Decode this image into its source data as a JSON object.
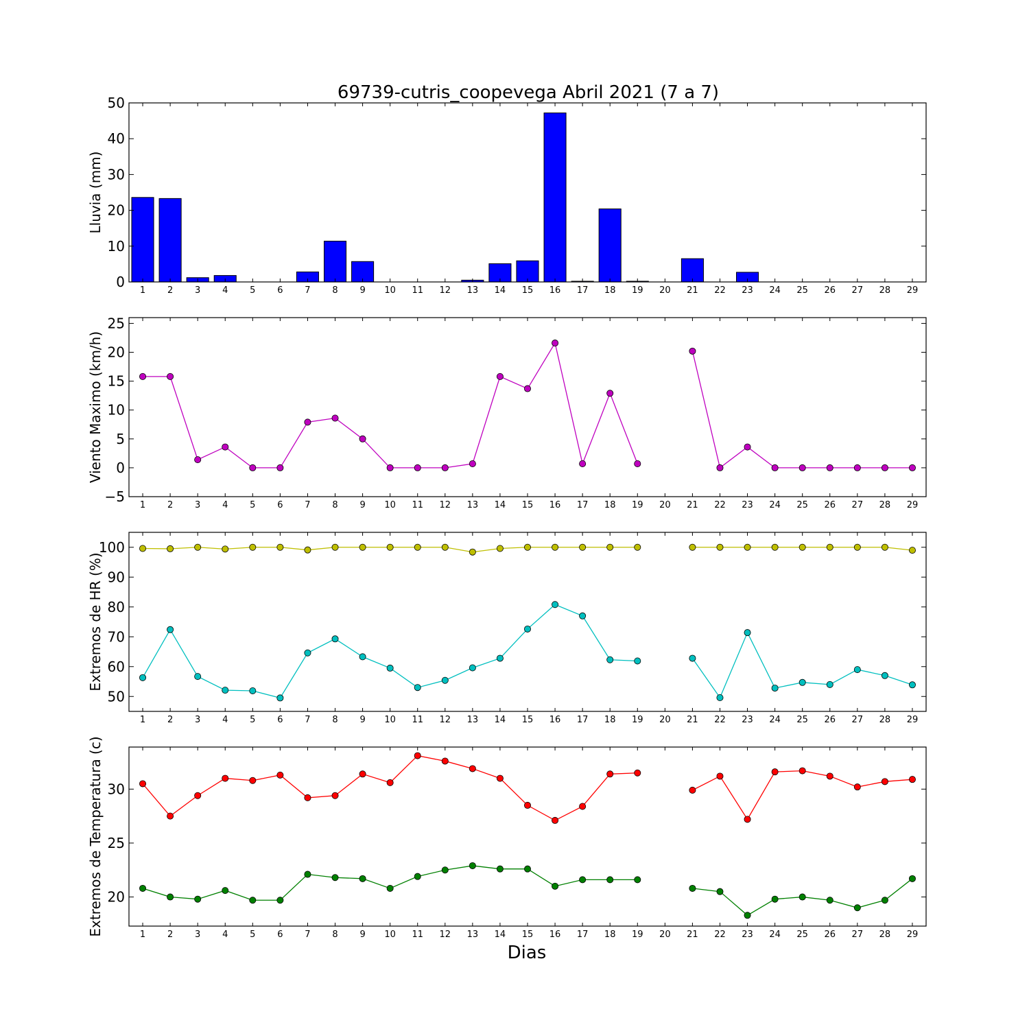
{
  "figure": {
    "title": "69739-cutris_coopevega Abril 2021  (7 a 7)",
    "xlabel": "Dias"
  },
  "chart_data": [
    {
      "type": "bar",
      "ylabel": "Lluvia (mm)",
      "ylim": [
        0,
        50
      ],
      "yticks": [
        0,
        10,
        20,
        30,
        40,
        50
      ],
      "x": [
        1,
        2,
        3,
        4,
        5,
        6,
        7,
        8,
        9,
        10,
        11,
        12,
        13,
        14,
        15,
        16,
        17,
        18,
        19,
        20,
        21,
        22,
        23,
        24,
        25,
        26,
        27,
        28,
        29
      ],
      "series": [
        {
          "color": "#0000ff",
          "values": [
            23.6,
            23.3,
            1.2,
            1.8,
            0,
            0,
            2.8,
            11.4,
            5.7,
            0,
            0,
            0,
            0.5,
            5.1,
            5.9,
            47.2,
            0.2,
            20.4,
            0.2,
            0,
            6.5,
            0,
            2.7,
            0,
            0,
            0,
            0,
            0,
            0
          ]
        }
      ],
      "grid": false
    },
    {
      "type": "line",
      "ylabel": "Viento Maximo (km/h)",
      "ylim": [
        -5,
        26
      ],
      "yticks": [
        -5,
        0,
        5,
        10,
        15,
        20,
        25
      ],
      "x": [
        1,
        2,
        3,
        4,
        5,
        6,
        7,
        8,
        9,
        10,
        11,
        12,
        13,
        14,
        15,
        16,
        17,
        18,
        19,
        20,
        21,
        22,
        23,
        24,
        25,
        26,
        27,
        28,
        29
      ],
      "series": [
        {
          "color": "#bf00bf",
          "values": [
            15.8,
            15.8,
            1.4,
            3.6,
            0,
            0,
            7.9,
            8.6,
            5.0,
            0,
            0,
            0,
            0.7,
            15.8,
            13.7,
            21.6,
            0.7,
            12.9,
            0.7,
            null,
            20.2,
            0,
            3.6,
            0,
            0,
            0,
            0,
            0,
            0
          ]
        }
      ],
      "grid": false
    },
    {
      "type": "line",
      "ylabel": "Extremos de HR (%)",
      "ylim": [
        45,
        105
      ],
      "yticks": [
        50,
        60,
        70,
        80,
        90,
        100
      ],
      "x": [
        1,
        2,
        3,
        4,
        5,
        6,
        7,
        8,
        9,
        10,
        11,
        12,
        13,
        14,
        15,
        16,
        17,
        18,
        19,
        20,
        21,
        22,
        23,
        24,
        25,
        26,
        27,
        28,
        29
      ],
      "series": [
        {
          "color": "#bfbf00",
          "values": [
            99.6,
            99.5,
            100,
            99.4,
            100,
            100,
            99.1,
            100,
            100,
            100,
            100,
            100,
            98.4,
            99.6,
            100,
            100,
            100,
            100,
            100,
            null,
            100,
            100,
            100,
            100,
            100,
            100,
            100,
            100,
            99.0
          ]
        },
        {
          "color": "#00bfbf",
          "values": [
            56.3,
            72.4,
            56.7,
            52.1,
            51.9,
            49.5,
            64.6,
            69.3,
            63.3,
            59.5,
            53.0,
            55.4,
            59.6,
            62.8,
            72.6,
            80.8,
            77.0,
            62.3,
            61.9,
            null,
            62.8,
            49.6,
            71.4,
            52.8,
            54.7,
            54.0,
            59.0,
            57.0,
            53.9
          ]
        }
      ],
      "grid": false
    },
    {
      "type": "line",
      "ylabel": "Extremos de Temperatura (c)",
      "ylim": [
        17.3,
        33.9
      ],
      "yticks": [
        20,
        25,
        30
      ],
      "x": [
        1,
        2,
        3,
        4,
        5,
        6,
        7,
        8,
        9,
        10,
        11,
        12,
        13,
        14,
        15,
        16,
        17,
        18,
        19,
        20,
        21,
        22,
        23,
        24,
        25,
        26,
        27,
        28,
        29
      ],
      "series": [
        {
          "color": "#ff0000",
          "values": [
            30.5,
            27.5,
            29.4,
            31.0,
            30.8,
            31.3,
            29.2,
            29.4,
            31.4,
            30.6,
            33.1,
            32.6,
            31.9,
            31.0,
            28.5,
            27.1,
            28.4,
            31.4,
            31.5,
            null,
            29.9,
            31.2,
            27.2,
            31.6,
            31.7,
            31.2,
            30.2,
            30.7,
            30.9
          ]
        },
        {
          "color": "#008000",
          "values": [
            20.8,
            20.0,
            19.8,
            20.6,
            19.7,
            19.7,
            22.1,
            21.8,
            21.7,
            20.8,
            21.9,
            22.5,
            22.9,
            22.6,
            22.6,
            21.0,
            21.6,
            21.6,
            21.6,
            null,
            20.8,
            20.5,
            18.3,
            19.8,
            20.0,
            19.7,
            19.0,
            19.7,
            21.7
          ]
        }
      ],
      "grid": false
    }
  ]
}
